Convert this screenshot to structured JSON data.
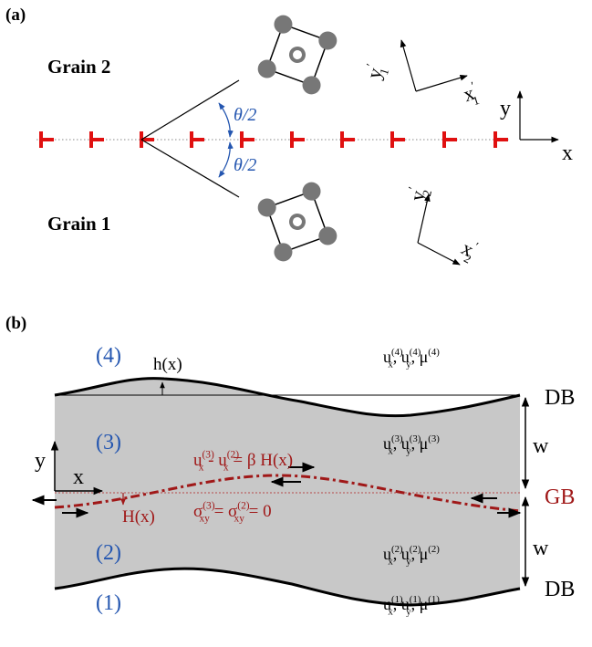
{
  "panel_a": {
    "label": "(a)",
    "grain_2": "Grain 2",
    "grain_1": "Grain 1",
    "half_angle_top": "θ/2",
    "half_angle_bottom": "θ/2",
    "frame_1": {
      "y": [
        {
          "t": "y",
          "sup": "′",
          "sub": "1"
        }
      ],
      "x": [
        {
          "t": "x",
          "sup": "′",
          "sub": "1"
        }
      ]
    },
    "frame_2": {
      "y": [
        {
          "t": "y",
          "sup": "′",
          "sub": "2"
        }
      ],
      "x": [
        {
          "t": "x",
          "sup": "′",
          "sub": "2"
        }
      ]
    },
    "lab_frame": {
      "y": "y",
      "x": "x"
    }
  },
  "panel_b": {
    "label": "(b)",
    "regions": [
      "(4)",
      "(3)",
      "(2)",
      "(1)"
    ],
    "h_label": "h(x)",
    "H_label": "H(x)",
    "local_axes": {
      "y": "y",
      "x": "x"
    },
    "boundaries": {
      "top": "DB",
      "middle": "GB",
      "bottom": "DB",
      "width_top": "w",
      "width_bottom": "w"
    },
    "fields": [
      [
        {
          "t": "u",
          "sub": "x",
          "sup": "(4)"
        },
        {
          "t": ", u",
          "sub": "y",
          "sup": "(4)"
        },
        {
          "t": ", μ",
          "sup": "(4)"
        }
      ],
      [
        {
          "t": "u",
          "sub": "x",
          "sup": "(3)"
        },
        {
          "t": ", u",
          "sub": "y",
          "sup": "(3)"
        },
        {
          "t": ", μ",
          "sup": "(3)"
        }
      ],
      [
        {
          "t": "u",
          "sub": "x",
          "sup": "(2)"
        },
        {
          "t": ", u",
          "sub": "y",
          "sup": "(2)"
        },
        {
          "t": ", μ",
          "sup": "(2)"
        }
      ],
      [
        {
          "t": "u",
          "sub": "x",
          "sup": "(1)"
        },
        {
          "t": ", u",
          "sub": "y",
          "sup": "(1)"
        },
        {
          "t": ", μ",
          "sup": "(1)"
        }
      ]
    ],
    "displacement_jump": [
      {
        "t": "u",
        "sub": "x",
        "sup": "(3)"
      },
      {
        "t": " - u",
        "sub": "x",
        "sup": "(2)"
      },
      {
        "t": " = β H(x)"
      }
    ],
    "traction": [
      {
        "t": "σ",
        "sub": "xy",
        "sup": "(3)"
      },
      {
        "t": " = σ",
        "sub": "xy",
        "sup": "(2)"
      },
      {
        "t": " = 0"
      }
    ]
  }
}
